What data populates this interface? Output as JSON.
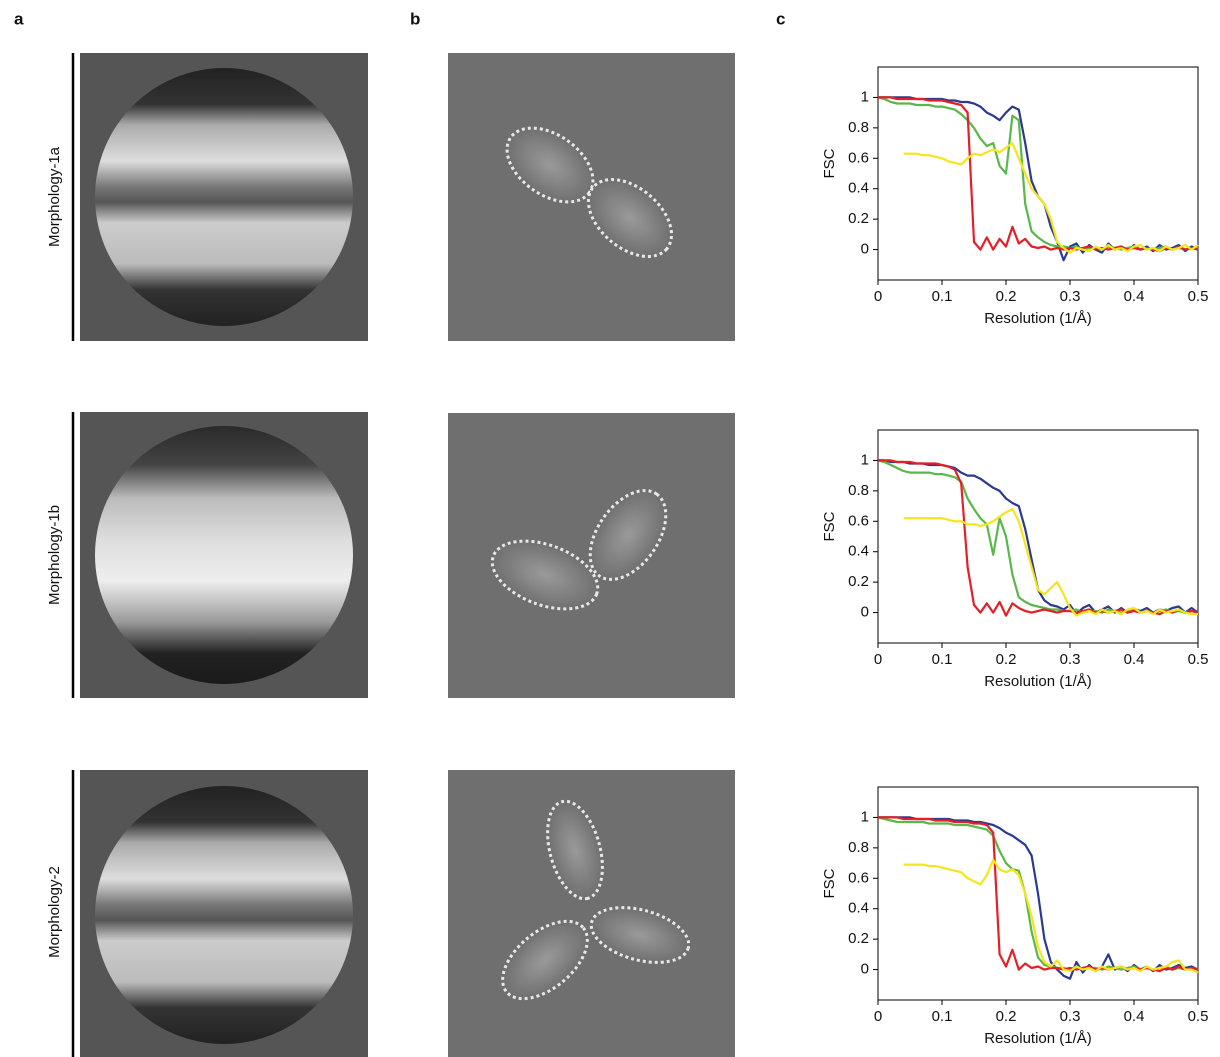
{
  "panel_labels": [
    "a",
    "b",
    "c"
  ],
  "row_labels": [
    "Morphology-1a",
    "Morphology-1b",
    "Morphology-2"
  ],
  "chart_data": [
    {
      "type": "line",
      "xlabel": "Resolution (1/Å)",
      "ylabel": "FSC",
      "x": [
        0,
        0.01,
        0.02,
        0.03,
        0.04,
        0.05,
        0.06,
        0.07,
        0.08,
        0.09,
        0.1,
        0.11,
        0.12,
        0.13,
        0.14,
        0.15,
        0.16,
        0.17,
        0.18,
        0.19,
        0.2,
        0.21,
        0.22,
        0.23,
        0.24,
        0.25,
        0.26,
        0.27,
        0.28,
        0.29,
        0.3,
        0.31,
        0.32,
        0.33,
        0.34,
        0.35,
        0.36,
        0.37,
        0.38,
        0.39,
        0.4,
        0.41,
        0.42,
        0.43,
        0.44,
        0.45,
        0.46,
        0.47,
        0.48,
        0.49,
        0.5
      ],
      "xlim": [
        0,
        0.5
      ],
      "ylim": [
        -0.2,
        1.2
      ],
      "xticks": [
        0,
        0.1,
        0.2,
        0.3,
        0.4,
        0.5
      ],
      "yticks": [
        0,
        0.2,
        0.4,
        0.6,
        0.8,
        1
      ],
      "series": [
        {
          "color": "#2b3a8f",
          "values": [
            1,
            1,
            1,
            1,
            1,
            1,
            0.99,
            0.99,
            0.99,
            0.99,
            0.99,
            0.98,
            0.98,
            0.97,
            0.97,
            0.96,
            0.94,
            0.9,
            0.88,
            0.85,
            0.9,
            0.94,
            0.92,
            0.7,
            0.45,
            0.35,
            0.3,
            0.15,
            0.05,
            -0.07,
            0.02,
            0.04,
            -0.02,
            0.03,
            0,
            -0.02,
            0.04,
            0,
            0.02,
            -0.01,
            0.03,
            0,
            0.02,
            -0.01,
            0.03,
            0,
            0.01,
            0.03,
            -0.01,
            0.02,
            0
          ]
        },
        {
          "color": "#5ab74a",
          "values": [
            1,
            0.99,
            0.97,
            0.96,
            0.96,
            0.96,
            0.95,
            0.95,
            0.95,
            0.94,
            0.94,
            0.93,
            0.92,
            0.89,
            0.85,
            0.8,
            0.73,
            0.68,
            0.7,
            0.55,
            0.5,
            0.88,
            0.85,
            0.3,
            0.12,
            0.08,
            0.05,
            0.03,
            0.02,
            0.02,
            0.01,
            0.02,
            0,
            0.01,
            0.01,
            0,
            0.02,
            0.01,
            0,
            0.01,
            0.02,
            0,
            0.01,
            0,
            0.01,
            0.02,
            0,
            0.01,
            0,
            0.01,
            0
          ]
        },
        {
          "color": "#e41f26",
          "values": [
            1,
            1,
            1,
            0.99,
            0.99,
            0.99,
            0.99,
            0.99,
            0.98,
            0.98,
            0.98,
            0.97,
            0.96,
            0.95,
            0.9,
            0.05,
            0,
            0.08,
            0,
            0.07,
            0.02,
            0.15,
            0.04,
            0.07,
            0.02,
            0.01,
            0.02,
            0,
            0.01,
            0,
            0.01,
            0,
            0.01,
            0.02,
            0,
            0.01,
            0,
            0.01,
            0.02,
            0,
            0.01,
            0,
            0.01,
            0,
            -0.01,
            0.01,
            0,
            0.02,
            0,
            0.01,
            0
          ]
        },
        {
          "color": "#f5e51a",
          "values": [
            null,
            null,
            null,
            null,
            0.63,
            0.63,
            0.63,
            0.62,
            0.62,
            0.61,
            0.6,
            0.58,
            0.57,
            0.56,
            0.6,
            0.63,
            0.62,
            0.64,
            0.66,
            0.64,
            0.67,
            0.7,
            0.6,
            0.5,
            0.4,
            0.35,
            0.3,
            0.2,
            0.05,
            0.01,
            -0.02,
            0.01,
            0,
            -0.01,
            0.02,
            0,
            0.03,
            0,
            0.01,
            -0.01,
            0.02,
            0.03,
            0,
            0.01,
            -0.01,
            0.02,
            0,
            0.01,
            0.03,
            0,
            0.03
          ]
        }
      ]
    },
    {
      "type": "line",
      "xlabel": "Resolution (1/Å)",
      "ylabel": "FSC",
      "x": [
        0,
        0.01,
        0.02,
        0.03,
        0.04,
        0.05,
        0.06,
        0.07,
        0.08,
        0.09,
        0.1,
        0.11,
        0.12,
        0.13,
        0.14,
        0.15,
        0.16,
        0.17,
        0.18,
        0.19,
        0.2,
        0.21,
        0.22,
        0.23,
        0.24,
        0.25,
        0.26,
        0.27,
        0.28,
        0.29,
        0.3,
        0.31,
        0.32,
        0.33,
        0.34,
        0.35,
        0.36,
        0.37,
        0.38,
        0.39,
        0.4,
        0.41,
        0.42,
        0.43,
        0.44,
        0.45,
        0.46,
        0.47,
        0.48,
        0.49,
        0.5
      ],
      "xlim": [
        0,
        0.5
      ],
      "ylim": [
        -0.2,
        1.2
      ],
      "xticks": [
        0,
        0.1,
        0.2,
        0.3,
        0.4,
        0.5
      ],
      "yticks": [
        0,
        0.2,
        0.4,
        0.6,
        0.8,
        1
      ],
      "series": [
        {
          "color": "#2b3a8f",
          "values": [
            1,
            1,
            0.99,
            0.99,
            0.99,
            0.98,
            0.98,
            0.98,
            0.97,
            0.97,
            0.97,
            0.96,
            0.95,
            0.92,
            0.9,
            0.9,
            0.88,
            0.85,
            0.82,
            0.8,
            0.75,
            0.72,
            0.7,
            0.55,
            0.35,
            0.15,
            0.08,
            0.05,
            0.04,
            0.02,
            0.05,
            -0.01,
            0.03,
            0.05,
            0,
            0.02,
            0.04,
            0,
            0.03,
            0,
            0.02,
            0.01,
            0.03,
            0,
            0.02,
            0.01,
            0.03,
            0.04,
            0,
            0.03,
            0
          ]
        },
        {
          "color": "#5ab74a",
          "values": [
            1,
            0.99,
            0.97,
            0.95,
            0.93,
            0.92,
            0.92,
            0.92,
            0.92,
            0.91,
            0.91,
            0.9,
            0.89,
            0.86,
            0.75,
            0.68,
            0.62,
            0.58,
            0.38,
            0.62,
            0.5,
            0.25,
            0.1,
            0.07,
            0.05,
            0.04,
            0.03,
            0.02,
            0.02,
            0.01,
            0.01,
            0.02,
            0,
            0.01,
            0.01,
            0,
            0.02,
            0.01,
            0,
            0.01,
            0.02,
            0,
            0.01,
            0,
            0.01,
            0.02,
            0,
            0.01,
            0,
            0.01,
            0
          ]
        },
        {
          "color": "#e41f26",
          "values": [
            1,
            1,
            1,
            0.99,
            0.99,
            0.99,
            0.98,
            0.98,
            0.98,
            0.98,
            0.97,
            0.96,
            0.94,
            0.85,
            0.3,
            0.05,
            0,
            0.06,
            0,
            0.07,
            -0.02,
            0.06,
            0.03,
            0.01,
            0,
            0.01,
            0.02,
            0.01,
            0,
            0.01,
            0.01,
            0,
            0.01,
            0.02,
            0,
            0.01,
            0,
            0.01,
            0.02,
            0,
            0.01,
            0,
            0.01,
            0,
            -0.01,
            0.01,
            0,
            0.02,
            0,
            0.01,
            0
          ]
        },
        {
          "color": "#f5e51a",
          "values": [
            null,
            null,
            null,
            null,
            0.62,
            0.62,
            0.62,
            0.62,
            0.62,
            0.62,
            0.62,
            0.61,
            0.6,
            0.6,
            0.58,
            0.58,
            0.57,
            0.58,
            0.6,
            0.63,
            0.66,
            0.68,
            0.6,
            0.45,
            0.3,
            0.15,
            0.12,
            0.16,
            0.2,
            0.12,
            0.03,
            -0.02,
            0,
            0.01,
            -0.01,
            0.02,
            0,
            0.01,
            -0.01,
            0.02,
            0.03,
            0,
            0.01,
            -0.01,
            0.02,
            0,
            0.01,
            0.02,
            0,
            -0.01,
            -0.01
          ]
        }
      ]
    },
    {
      "type": "line",
      "xlabel": "Resolution (1/Å)",
      "ylabel": "FSC",
      "x": [
        0,
        0.01,
        0.02,
        0.03,
        0.04,
        0.05,
        0.06,
        0.07,
        0.08,
        0.09,
        0.1,
        0.11,
        0.12,
        0.13,
        0.14,
        0.15,
        0.16,
        0.17,
        0.18,
        0.19,
        0.2,
        0.21,
        0.22,
        0.23,
        0.24,
        0.25,
        0.26,
        0.27,
        0.28,
        0.29,
        0.3,
        0.31,
        0.32,
        0.33,
        0.34,
        0.35,
        0.36,
        0.37,
        0.38,
        0.39,
        0.4,
        0.41,
        0.42,
        0.43,
        0.44,
        0.45,
        0.46,
        0.47,
        0.48,
        0.49,
        0.5
      ],
      "xlim": [
        0,
        0.5
      ],
      "ylim": [
        -0.2,
        1.2
      ],
      "xticks": [
        0,
        0.1,
        0.2,
        0.3,
        0.4,
        0.5
      ],
      "yticks": [
        0,
        0.2,
        0.4,
        0.6,
        0.8,
        1
      ],
      "series": [
        {
          "color": "#2b3a8f",
          "values": [
            1,
            1,
            1,
            1,
            1,
            1,
            0.99,
            0.99,
            0.99,
            0.99,
            0.99,
            0.99,
            0.98,
            0.98,
            0.98,
            0.97,
            0.97,
            0.96,
            0.95,
            0.93,
            0.9,
            0.88,
            0.85,
            0.82,
            0.75,
            0.5,
            0.2,
            0.05,
            0,
            -0.04,
            -0.06,
            0.05,
            -0.02,
            0.03,
            -0.01,
            0.02,
            0.1,
            0,
            0.02,
            -0.01,
            0.03,
            0,
            0.02,
            -0.01,
            0.03,
            0,
            0.01,
            0.03,
            0.01,
            0.02,
            0
          ]
        },
        {
          "color": "#5ab74a",
          "values": [
            1,
            0.99,
            0.98,
            0.97,
            0.97,
            0.97,
            0.97,
            0.97,
            0.96,
            0.96,
            0.96,
            0.96,
            0.95,
            0.95,
            0.95,
            0.94,
            0.93,
            0.92,
            0.88,
            0.78,
            0.7,
            0.66,
            0.65,
            0.5,
            0.25,
            0.08,
            0.03,
            0.02,
            0.01,
            0.01,
            0,
            0.02,
            0,
            0.01,
            0.01,
            0,
            0.02,
            0.01,
            0,
            0.01,
            0.02,
            0,
            0.01,
            0,
            0.01,
            0.02,
            0,
            0.01,
            0,
            0.01,
            0
          ]
        },
        {
          "color": "#e41f26",
          "values": [
            1,
            1,
            1,
            1,
            0.99,
            0.99,
            0.99,
            0.99,
            0.99,
            0.98,
            0.98,
            0.98,
            0.97,
            0.97,
            0.97,
            0.96,
            0.96,
            0.95,
            0.9,
            0.1,
            0.02,
            0.13,
            0,
            0.04,
            0.01,
            0.02,
            0,
            0.01,
            0.01,
            0,
            0.01,
            0,
            0.01,
            0.02,
            0,
            0.01,
            0,
            0.01,
            0.02,
            0,
            0.01,
            0,
            0.01,
            0,
            -0.01,
            0.01,
            0,
            0.02,
            0,
            0.01,
            0
          ]
        },
        {
          "color": "#f5e51a",
          "values": [
            null,
            null,
            null,
            null,
            0.69,
            0.69,
            0.69,
            0.69,
            0.68,
            0.68,
            0.67,
            0.66,
            0.65,
            0.64,
            0.6,
            0.58,
            0.56,
            0.62,
            0.72,
            0.66,
            0.64,
            0.66,
            0.62,
            0.5,
            0.35,
            0.15,
            0.05,
            0.02,
            0.06,
            0,
            -0.01,
            0.02,
            0,
            0.01,
            -0.01,
            0.02,
            0,
            0.01,
            0.02,
            0,
            0.01,
            -0.01,
            0.02,
            0,
            0.01,
            0.02,
            0.05,
            0.06,
            0,
            0,
            -0.02
          ]
        }
      ]
    }
  ]
}
